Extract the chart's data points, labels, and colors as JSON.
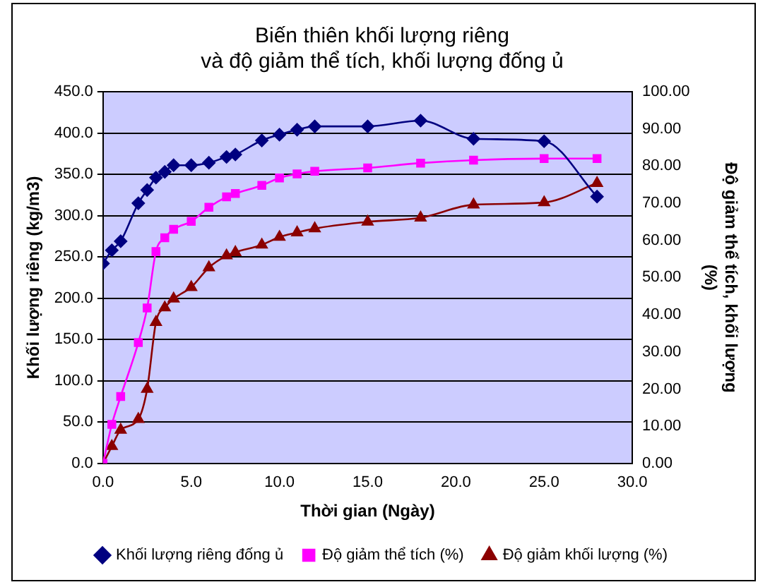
{
  "chart_data": {
    "type": "line",
    "title": "Biến thiên khối lượng riêng\nvà độ giảm thể tích, khối lượng đống ủ",
    "xlabel": "Thời gian (Ngày)",
    "ylabel": "Khối lượng riêng (kg/m3)",
    "y2label": "Độ giảm thể tích, khối lượng (%)",
    "x": [
      0,
      0.5,
      1,
      2,
      2.5,
      3,
      3.5,
      4,
      5,
      6,
      7,
      7.5,
      9,
      10,
      11,
      12,
      15,
      18,
      21,
      25,
      28
    ],
    "series": [
      {
        "name": "Khối lượng riêng đống ủ",
        "color": "#000080",
        "marker": "diamond",
        "values": [
          242,
          258,
          269,
          315,
          331,
          346,
          353,
          361,
          361,
          364,
          371,
          374,
          391,
          398,
          404,
          408,
          408,
          415,
          393,
          390,
          323
        ]
      },
      {
        "name": "Độ giảm thể tích (%)",
        "color": "#ff00ff",
        "marker": "square",
        "axis": "y2",
        "values": [
          0,
          10.5,
          18,
          32.5,
          41.8,
          57,
          60.7,
          63,
          65.1,
          68.9,
          71.7,
          72.6,
          74.8,
          76.8,
          77.9,
          78.6,
          79.5,
          80.8,
          81.6,
          82,
          82
        ]
      },
      {
        "name": "Độ giảm khối lượng (%)",
        "color": "#8b0000",
        "marker": "triangle",
        "axis": "y2",
        "values": [
          0,
          4.6,
          9,
          11.9,
          20,
          38,
          41.9,
          44.3,
          47.4,
          52.7,
          55.9,
          56.8,
          58.8,
          60.9,
          62.1,
          63.2,
          65,
          66.1,
          69.6,
          70.2,
          75.4
        ]
      }
    ],
    "xlim": [
      0,
      30
    ],
    "xticks": [
      {
        "value": 0,
        "label": "0.0"
      },
      {
        "value": 5,
        "label": "5.0"
      },
      {
        "value": 10,
        "label": "10.0"
      },
      {
        "value": 15,
        "label": "15.0"
      },
      {
        "value": 20,
        "label": "20.0"
      },
      {
        "value": 25,
        "label": "25.0"
      },
      {
        "value": 30,
        "label": "30.0"
      }
    ],
    "ylim": [
      0,
      450
    ],
    "yticks": [
      {
        "value": 0,
        "label": "0.0"
      },
      {
        "value": 50,
        "label": "50.0"
      },
      {
        "value": 100,
        "label": "100.0"
      },
      {
        "value": 150,
        "label": "150.0"
      },
      {
        "value": 200,
        "label": "200.0"
      },
      {
        "value": 250,
        "label": "250.0"
      },
      {
        "value": 300,
        "label": "300.0"
      },
      {
        "value": 350,
        "label": "350.0"
      },
      {
        "value": 400,
        "label": "400.0"
      },
      {
        "value": 450,
        "label": "450.0"
      }
    ],
    "y2lim": [
      0,
      100
    ],
    "y2ticks": [
      {
        "value": 0,
        "label": "0.00"
      },
      {
        "value": 10,
        "label": "10.00"
      },
      {
        "value": 20,
        "label": "20.00"
      },
      {
        "value": 30,
        "label": "30.00"
      },
      {
        "value": 40,
        "label": "40.00"
      },
      {
        "value": 50,
        "label": "50.00"
      },
      {
        "value": 60,
        "label": "60.00"
      },
      {
        "value": 70,
        "label": "70.00"
      },
      {
        "value": 80,
        "label": "80.00"
      },
      {
        "value": 90,
        "label": "90.00"
      },
      {
        "value": 100,
        "label": "100.00"
      }
    ],
    "grid": "y",
    "legend": "bottom",
    "line_style": "solid"
  }
}
